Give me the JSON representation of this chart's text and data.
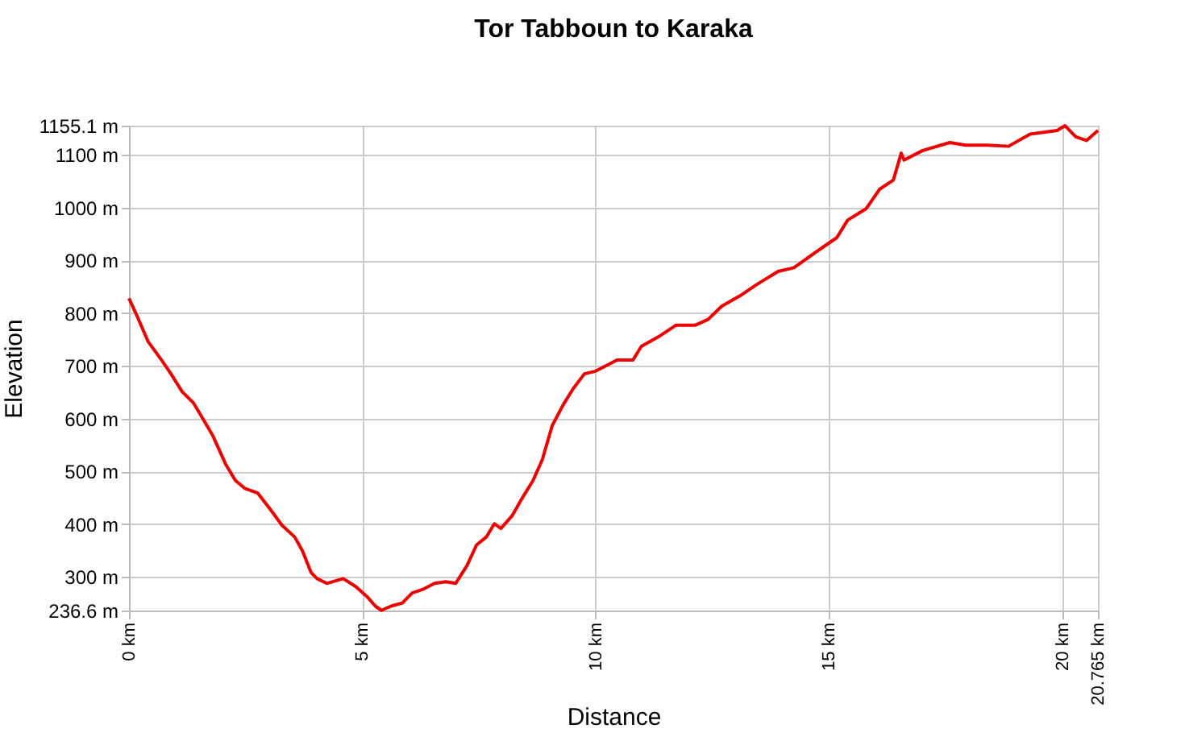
{
  "chart_data": {
    "type": "line",
    "title": "Tor Tabboun to Karaka",
    "xlabel": "Distance",
    "ylabel": "Elevation",
    "x": [
      0,
      0.17,
      0.41,
      0.69,
      0.9,
      1.14,
      1.38,
      1.59,
      1.79,
      2.07,
      2.28,
      2.48,
      2.76,
      3.03,
      3.28,
      3.55,
      3.72,
      3.9,
      4.03,
      4.24,
      4.59,
      4.86,
      5.1,
      5.28,
      5.41,
      5.62,
      5.86,
      6.07,
      6.28,
      6.55,
      6.79,
      7.0,
      7.24,
      7.45,
      7.66,
      7.83,
      7.97,
      8.21,
      8.41,
      8.66,
      8.86,
      9.07,
      9.31,
      9.52,
      9.76,
      10.0,
      10.46,
      10.8,
      10.98,
      11.38,
      11.72,
      12.13,
      12.41,
      12.7,
      13.1,
      13.45,
      13.91,
      14.25,
      14.71,
      15.17,
      15.4,
      15.8,
      16.09,
      16.38,
      16.55,
      16.61,
      17.01,
      17.59,
      17.93,
      18.39,
      18.85,
      19.31,
      19.89,
      20.06,
      20.29,
      20.52,
      20.765
    ],
    "series": [
      {
        "color": "#ee0000",
        "values": [
          828,
          795,
          746,
          712,
          685,
          651,
          630,
          599,
          569,
          514,
          483,
          468,
          459,
          428,
          398,
          376,
          349,
          309,
          297,
          288,
          297,
          282,
          263,
          245,
          237,
          245,
          251,
          270,
          276,
          288,
          291,
          288,
          321,
          361,
          376,
          401,
          392,
          416,
          447,
          483,
          523,
          587,
          627,
          657,
          685,
          690,
          711,
          711,
          737,
          757,
          777,
          777,
          788,
          813,
          833,
          854,
          879,
          886,
          915,
          943,
          976,
          998,
          1035,
          1052,
          1103,
          1090,
          1108,
          1123,
          1118,
          1118,
          1116,
          1139,
          1146,
          1155,
          1134,
          1127,
          1146
        ]
      }
    ],
    "xlim": [
      0,
      20.765
    ],
    "ylim": [
      236.6,
      1155.1
    ],
    "xticks": [
      {
        "value": 0,
        "label": "0 km"
      },
      {
        "value": 5,
        "label": "5 km"
      },
      {
        "value": 10,
        "label": "10 km"
      },
      {
        "value": 15,
        "label": "15 km"
      },
      {
        "value": 20,
        "label": "20 km"
      },
      {
        "value": 20.765,
        "label": "20.765 km"
      }
    ],
    "yticks": [
      {
        "value": 236.6,
        "label": "236.6 m"
      },
      {
        "value": 300,
        "label": "300 m"
      },
      {
        "value": 400,
        "label": "400 m"
      },
      {
        "value": 500,
        "label": "500 m"
      },
      {
        "value": 600,
        "label": "600 m"
      },
      {
        "value": 700,
        "label": "700 m"
      },
      {
        "value": 800,
        "label": "800 m"
      },
      {
        "value": 900,
        "label": "900 m"
      },
      {
        "value": 1000,
        "label": "1000 m"
      },
      {
        "value": 1100,
        "label": "1100 m"
      },
      {
        "value": 1155.1,
        "label": "1155.1 m"
      }
    ],
    "grid": true,
    "marker": "none",
    "line_style": "solid"
  }
}
